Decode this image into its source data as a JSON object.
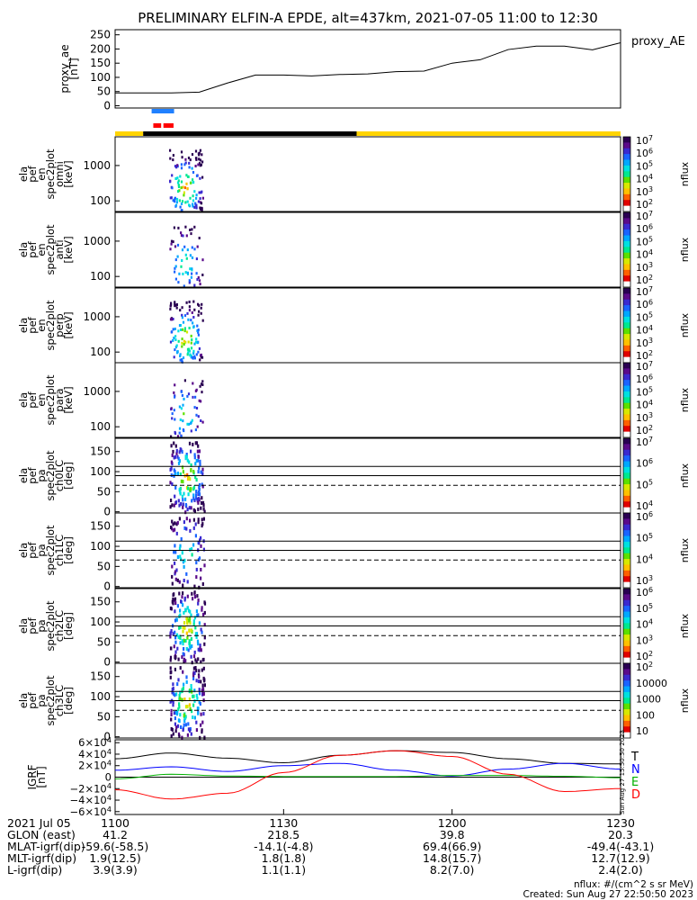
{
  "title": "PRELIMINARY ELFIN-A EPDE, alt=437km, 2021-07-05 11:00 to 12:30",
  "colors": {
    "cbar": [
      "#2a0052",
      "#5a0a8a",
      "#3a2ad0",
      "#1a64ff",
      "#00a8ff",
      "#00e0e0",
      "#00e890",
      "#5ce000",
      "#d8e800",
      "#ffc000",
      "#ff6000",
      "#e00000",
      "#ffffff"
    ],
    "sunlight": "#ffd400",
    "shadow": "#000000",
    "sci_zone": "#2080ff",
    "sci_zone2": "#ff0000",
    "T": "#000000",
    "N": "#0000ff",
    "E": "#00b000",
    "D": "#ff0000"
  },
  "chart_data": [
    {
      "type": "line",
      "series": [
        {
          "name": "proxy_AE",
          "x_min": [
            0,
            5,
            10,
            15,
            20,
            25,
            30,
            35,
            40,
            45,
            50,
            55,
            60,
            65,
            70,
            75,
            80,
            85,
            90
          ],
          "values": [
            45,
            45,
            45,
            48,
            80,
            108,
            108,
            105,
            110,
            112,
            120,
            122,
            150,
            162,
            198,
            210,
            210,
            197,
            222
          ]
        }
      ],
      "ylabel": "proxy_ae\n[nT]",
      "yticks": [
        "0",
        "50",
        "100",
        "150",
        "200",
        "250"
      ],
      "ylim": [
        -8,
        268
      ]
    },
    {
      "type": "heatmap",
      "panels": [
        {
          "ylabel": [
            "ela",
            "pef",
            "en",
            "spec2plot",
            "omni",
            "[keV]"
          ],
          "scale": "log",
          "yticks": [
            "100",
            "1000"
          ],
          "ylim": [
            50,
            6500
          ],
          "cbar": {
            "ticks": [
              "10^7",
              "10^6",
              "10^5",
              "10^4",
              "10^3",
              "10^2"
            ],
            "label": "nflux"
          },
          "hlines": []
        },
        {
          "ylabel": [
            "ela",
            "pef",
            "en",
            "spec2plot",
            "anti",
            "[keV]"
          ],
          "scale": "log",
          "yticks": [
            "100",
            "1000"
          ],
          "ylim": [
            50,
            6500
          ],
          "cbar": {
            "ticks": [
              "10^7",
              "10^6",
              "10^5",
              "10^4",
              "10^3",
              "10^2"
            ],
            "label": "nflux"
          },
          "hlines": []
        },
        {
          "ylabel": [
            "ela",
            "pef",
            "en",
            "spec2plot",
            "perp",
            "[keV]"
          ],
          "scale": "log",
          "yticks": [
            "100",
            "1000"
          ],
          "ylim": [
            50,
            6500
          ],
          "cbar": {
            "ticks": [
              "10^7",
              "10^6",
              "10^5",
              "10^4",
              "10^3",
              "10^2"
            ],
            "label": "nflux"
          },
          "hlines": []
        },
        {
          "ylabel": [
            "ela",
            "pef",
            "en",
            "spec2plot",
            "para",
            "[keV]"
          ],
          "scale": "log",
          "yticks": [
            "100",
            "1000"
          ],
          "ylim": [
            50,
            6500
          ],
          "cbar": {
            "ticks": [
              "10^7",
              "10^6",
              "10^5",
              "10^4",
              "10^3",
              "10^2"
            ],
            "label": "nflux"
          },
          "hlines": []
        },
        {
          "ylabel": [
            "ela",
            "pef",
            "pa",
            "spec2plot",
            "ch0LC",
            "[deg]"
          ],
          "scale": "linear",
          "yticks": [
            "0",
            "50",
            "100",
            "150"
          ],
          "ylim": [
            -3,
            183
          ],
          "cbar": {
            "ticks": [
              "10^7",
              "10^6",
              "10^5",
              "10^4"
            ],
            "label": "nflux"
          },
          "hlines": [
            90,
            113,
            66
          ]
        },
        {
          "ylabel": [
            "ela",
            "pef",
            "pa",
            "spec2plot",
            "ch1LC",
            "[deg]"
          ],
          "scale": "linear",
          "yticks": [
            "0",
            "50",
            "100",
            "150"
          ],
          "ylim": [
            -3,
            183
          ],
          "cbar": {
            "ticks": [
              "10^6",
              "10^5",
              "10^4",
              "10^3"
            ],
            "label": "nflux"
          },
          "hlines": [
            90,
            113,
            66
          ]
        },
        {
          "ylabel": [
            "ela",
            "pef",
            "pa",
            "spec2plot",
            "ch2LC",
            "[deg]"
          ],
          "scale": "linear",
          "yticks": [
            "0",
            "50",
            "100",
            "150"
          ],
          "ylim": [
            -3,
            183
          ],
          "cbar": {
            "ticks": [
              "10^6",
              "10^5",
              "10^4",
              "10^3",
              "10^2"
            ],
            "label": "nflux"
          },
          "hlines": [
            90,
            113,
            66
          ]
        },
        {
          "ylabel": [
            "ela",
            "pef",
            "pa",
            "spec2plot",
            "ch3LC",
            "[deg]"
          ],
          "scale": "linear",
          "yticks": [
            "0",
            "50",
            "100",
            "150"
          ],
          "ylim": [
            -3,
            183
          ],
          "cbar": {
            "ticks": [
              "10^2",
              "10000",
              "1000",
              "100",
              "10"
            ],
            "label": "nflux"
          },
          "hlines": [
            90,
            113,
            66
          ]
        }
      ]
    },
    {
      "type": "line",
      "ylabel": "IGRF\n[nT]",
      "yticks": [
        "6×10^4",
        "4×10^4",
        "2×10^4",
        "0",
        "−2×10^4",
        "−4×10^4",
        "−6×10^4"
      ],
      "ylim": [
        -65000,
        65000
      ],
      "series": [
        {
          "name": "T",
          "x_min": [
            0,
            10,
            20,
            30,
            40,
            50,
            60,
            70,
            80,
            90
          ],
          "values": [
            32000,
            42000,
            33000,
            25000,
            38000,
            46000,
            43000,
            32000,
            24000,
            23000
          ]
        },
        {
          "name": "N",
          "x_min": [
            0,
            10,
            20,
            30,
            40,
            50,
            60,
            70,
            80,
            90
          ],
          "values": [
            12000,
            18000,
            10000,
            20000,
            24000,
            12000,
            2000,
            14000,
            24000,
            14000
          ]
        },
        {
          "name": "E",
          "x_min": [
            0,
            10,
            20,
            30,
            40,
            50,
            60,
            70,
            80,
            90
          ],
          "values": [
            -3000,
            5000,
            2000,
            1000,
            1000,
            1000,
            3000,
            3000,
            1500,
            -1000
          ]
        },
        {
          "name": "D",
          "x_min": [
            0,
            10,
            20,
            30,
            40,
            50,
            60,
            70,
            80,
            90
          ],
          "values": [
            -22000,
            -38000,
            -28000,
            8000,
            38000,
            46000,
            36000,
            5000,
            -25000,
            -20000
          ]
        }
      ]
    }
  ],
  "ephem": {
    "rows": [
      [
        "2021 Jul 05",
        "1100",
        "1130",
        "1200",
        "1230"
      ],
      [
        "GLON (east)",
        "41.2",
        "218.5",
        "39.8",
        "20.3"
      ],
      [
        "MLAT-igrf(dip)",
        "-59.6(-58.5)",
        "-14.1(-4.8)",
        "69.4(66.9)",
        "-49.4(-43.1)"
      ],
      [
        "MLT-igrf(dip)",
        "1.9(12.5)",
        "1.8(1.8)",
        "14.8(15.7)",
        "12.7(12.9)"
      ],
      [
        "L-igrf(dip)",
        "3.9(3.9)",
        "1.1(1.1)",
        "8.2(7.0)",
        "2.4(2.0)"
      ]
    ]
  },
  "legend_ae": "proxy_AE",
  "legend_igrf": [
    "T",
    "N",
    "E",
    "D"
  ],
  "footer": [
    "nflux: #/(cm^2 s sr MeV)",
    "Created: Sun Aug 27 22:50:50 2023"
  ],
  "stamp": "Sun Aug 27 15:50:50 2023"
}
